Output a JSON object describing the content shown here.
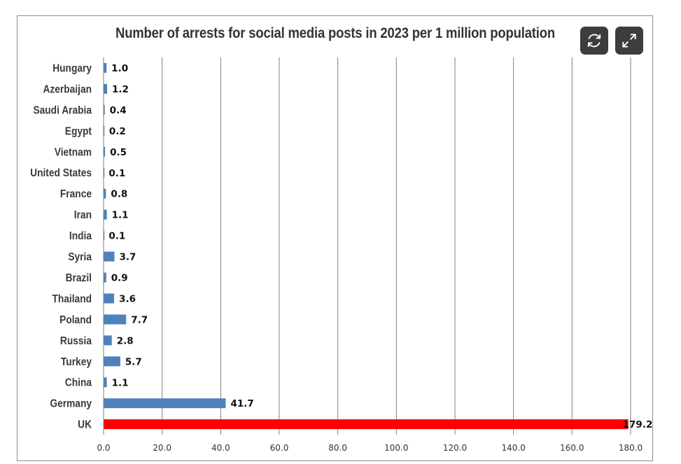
{
  "chart_data": {
    "type": "bar",
    "orientation": "horizontal",
    "title": "Number of arrests for social media posts in 2023 per 1 million population",
    "xlabel": "",
    "ylabel": "",
    "xlim": [
      0,
      180
    ],
    "x_ticks": [
      "0.0",
      "20.0",
      "40.0",
      "60.0",
      "80.0",
      "100.0",
      "120.0",
      "140.0",
      "160.0",
      "180.0"
    ],
    "x_tick_values": [
      0,
      20,
      40,
      60,
      80,
      100,
      120,
      140,
      160,
      180
    ],
    "grid": "vertical",
    "legend": "none",
    "categories": [
      "Hungary",
      "Azerbaijan",
      "Saudi Arabia",
      "Egypt",
      "Vietnam",
      "United States",
      "France",
      "Iran",
      "India",
      "Syria",
      "Brazil",
      "Thailand",
      "Poland",
      "Russia",
      "Turkey",
      "China",
      "Germany",
      "UK"
    ],
    "values": [
      1.0,
      1.2,
      0.4,
      0.2,
      0.5,
      0.1,
      0.8,
      1.1,
      0.1,
      3.7,
      0.9,
      3.6,
      7.7,
      2.8,
      5.7,
      1.1,
      41.7,
      179.2
    ],
    "value_labels": [
      "1.0",
      "1.2",
      "0.4",
      "0.2",
      "0.5",
      "0.1",
      "0.8",
      "1.1",
      "0.1",
      "3.7",
      "0.9",
      "3.6",
      "7.7",
      "2.8",
      "5.7",
      "1.1",
      "41.7",
      "179.2"
    ],
    "colors": {
      "default": "#4f81bd",
      "highlight": "#ff0000",
      "highlight_category": "UK",
      "grid": "#7f7f7f"
    }
  },
  "controls": {
    "refresh_icon": "refresh-icon",
    "expand_icon": "expand-icon"
  }
}
